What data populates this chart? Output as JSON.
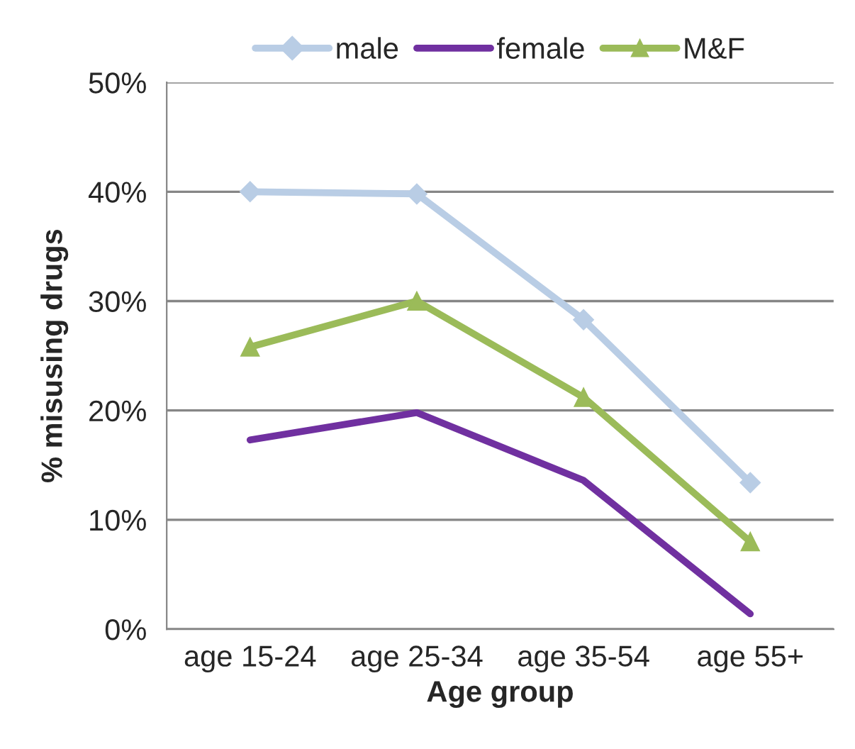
{
  "chart_data": {
    "type": "line",
    "xlabel": "Age group",
    "ylabel": "% misusing drugs",
    "categories": [
      "age 15-24",
      "age 25-34",
      "age 35-54",
      "age 55+"
    ],
    "series": [
      {
        "name": "male",
        "color": "#b9cde5",
        "marker": "diamond",
        "values": [
          40.0,
          39.8,
          28.3,
          13.4
        ]
      },
      {
        "name": "female",
        "color": "#7030a0",
        "marker": "none",
        "values": [
          17.3,
          19.8,
          13.6,
          1.4
        ]
      },
      {
        "name": "M&F",
        "color": "#9bbb59",
        "marker": "triangle",
        "values": [
          25.8,
          30.0,
          21.2,
          8.0
        ]
      }
    ],
    "ylim": [
      0,
      50
    ],
    "yticks": [
      {
        "value": 0,
        "label": "0%"
      },
      {
        "value": 10,
        "label": "10%"
      },
      {
        "value": 20,
        "label": "20%"
      },
      {
        "value": 30,
        "label": "30%"
      },
      {
        "value": 40,
        "label": "40%"
      },
      {
        "value": 50,
        "label": "50%"
      }
    ],
    "grid": "y",
    "legend": "top"
  }
}
